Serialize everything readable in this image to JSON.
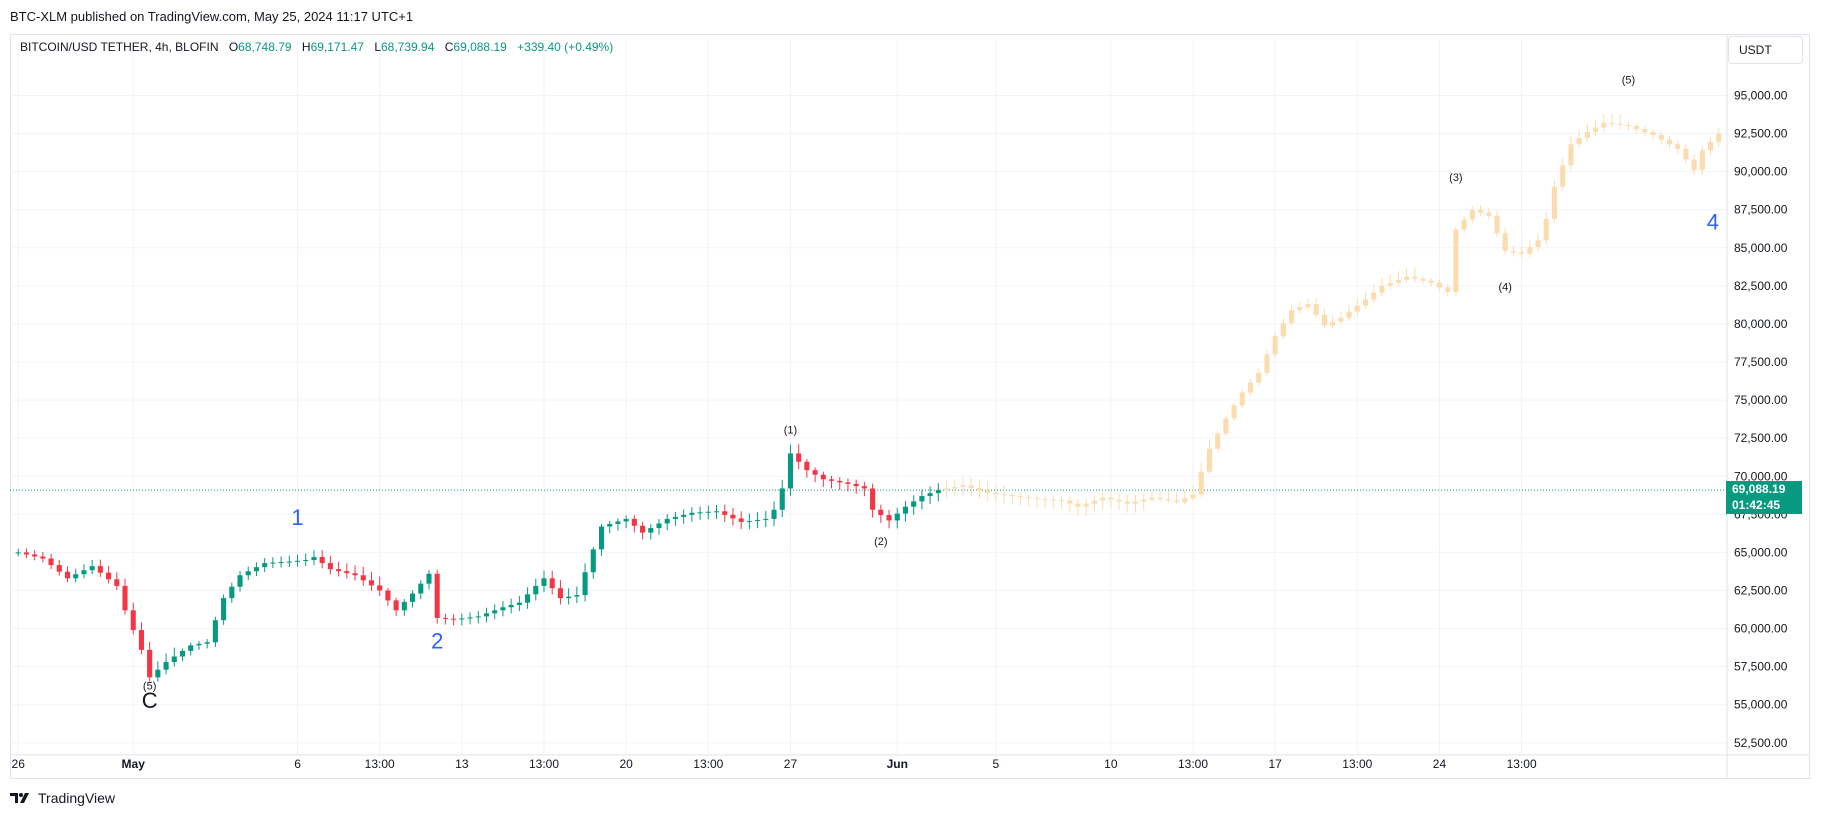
{
  "header": {
    "published_line": "BTC-XLM published on TradingView.com, May 25, 2024 11:17 UTC+1"
  },
  "legend": {
    "symbol": "BITCOIN/USD TETHER, 4h, BLOFIN",
    "open_label": "O",
    "open": "68,748.79",
    "high_label": "H",
    "high": "69,171.47",
    "low_label": "L",
    "low": "68,739.94",
    "close_label": "C",
    "close": "69,088.19",
    "change": "+339.40 (+0.49%)"
  },
  "currency_button": "USDT",
  "last_price": {
    "value": "69,088.19",
    "countdown": "01:42:45"
  },
  "footer": {
    "brand": "TradingView"
  },
  "colors": {
    "up": "#089981",
    "down": "#f23645",
    "projection": "#fbdcae",
    "wave_blue": "#2962ff",
    "grid": "#f0f3fa",
    "axis_text": "#131722"
  },
  "chart_data": {
    "type": "candlestick",
    "symbol": "BITCOIN/USD TETHER",
    "interval": "4h",
    "y_axis": {
      "ticks": [
        52500,
        55000,
        57500,
        60000,
        62500,
        65000,
        67500,
        70000,
        72500,
        75000,
        77500,
        80000,
        82500,
        85000,
        87500,
        90000,
        92500,
        95000
      ],
      "tick_labels": [
        "52,500.00",
        "55,000.00",
        "57,500.00",
        "60,000.00",
        "62,500.00",
        "65,000.00",
        "67,500.00",
        "70,000.00",
        "72,500.00",
        "75,000.00",
        "77,500.00",
        "80,000.00",
        "82,500.00",
        "85,000.00",
        "87,500.00",
        "90,000.00",
        "92,500.00",
        "95,000.00"
      ],
      "ylim": [
        51700,
        97000
      ]
    },
    "x_axis": {
      "tick_labels": [
        "26",
        "May",
        "6",
        "13:00",
        "13",
        "13:00",
        "20",
        "13:00",
        "27",
        "Jun",
        "5",
        "10",
        "13:00",
        "17",
        "13:00",
        "24",
        "13:00"
      ],
      "tick_index": [
        0,
        14,
        34,
        44,
        54,
        64,
        74,
        84,
        94,
        107,
        119,
        133,
        143,
        153,
        163,
        173,
        183
      ],
      "bold_labels": [
        "May",
        "Jun"
      ],
      "xlim": [
        -1,
        208
      ]
    },
    "last_price": 69088.19,
    "actual_series": {
      "name": "",
      "description": "4h candles Apr 26 - May 25",
      "close_path": [
        [
          0,
          65000
        ],
        [
          3,
          64600
        ],
        [
          6,
          63300
        ],
        [
          9,
          64100
        ],
        [
          12,
          62800
        ],
        [
          13,
          61200
        ],
        [
          15,
          58600
        ],
        [
          16,
          56800
        ],
        [
          18,
          57800
        ],
        [
          21,
          58900
        ],
        [
          23,
          59100
        ],
        [
          25,
          62000
        ],
        [
          27,
          63500
        ],
        [
          30,
          64300
        ],
        [
          33,
          64400
        ],
        [
          35,
          64500
        ],
        [
          36,
          64700
        ],
        [
          38,
          63900
        ],
        [
          41,
          63500
        ],
        [
          44,
          62500
        ],
        [
          46,
          61200
        ],
        [
          48,
          62300
        ],
        [
          50,
          63600
        ],
        [
          51,
          60700
        ],
        [
          53,
          60600
        ],
        [
          56,
          60800
        ],
        [
          59,
          61400
        ],
        [
          61,
          61700
        ],
        [
          63,
          62800
        ],
        [
          64,
          63300
        ],
        [
          66,
          62000
        ],
        [
          68,
          62200
        ],
        [
          69,
          63700
        ],
        [
          71,
          66700
        ],
        [
          74,
          67200
        ],
        [
          76,
          66300
        ],
        [
          79,
          67200
        ],
        [
          82,
          67600
        ],
        [
          85,
          67700
        ],
        [
          88,
          67000
        ],
        [
          91,
          67200
        ],
        [
          92,
          67800
        ],
        [
          93,
          69200
        ],
        [
          94,
          71500
        ],
        [
          96,
          70400
        ],
        [
          98,
          69800
        ],
        [
          101,
          69500
        ],
        [
          103,
          69200
        ],
        [
          104,
          67800
        ],
        [
          106,
          67100
        ],
        [
          108,
          68000
        ],
        [
          110,
          68700
        ],
        [
          112,
          69088.19
        ]
      ]
    },
    "projection_series": {
      "name": "",
      "description": "projected path (faded)",
      "close_path": [
        [
          112,
          69088
        ],
        [
          115,
          69400
        ],
        [
          118,
          68900
        ],
        [
          121,
          68700
        ],
        [
          124,
          68500
        ],
        [
          127,
          68400
        ],
        [
          129,
          68000
        ],
        [
          132,
          68600
        ],
        [
          135,
          68200
        ],
        [
          138,
          68600
        ],
        [
          141,
          68300
        ],
        [
          143,
          68800
        ],
        [
          145,
          71800
        ],
        [
          147,
          73800
        ],
        [
          149,
          75500
        ],
        [
          151,
          76800
        ],
        [
          153,
          79200
        ],
        [
          155,
          80900
        ],
        [
          157,
          81300
        ],
        [
          159,
          79900
        ],
        [
          161,
          80400
        ],
        [
          164,
          81600
        ],
        [
          166,
          82500
        ],
        [
          169,
          83100
        ],
        [
          172,
          82700
        ],
        [
          174,
          82100
        ],
        [
          175,
          86200
        ],
        [
          177,
          87500
        ],
        [
          179,
          87100
        ],
        [
          181,
          84800
        ],
        [
          183,
          84600
        ],
        [
          185,
          85500
        ],
        [
          186,
          86900
        ],
        [
          187,
          89000
        ],
        [
          189,
          91800
        ],
        [
          191,
          92600
        ],
        [
          193,
          93200
        ],
        [
          196,
          93000
        ],
        [
          199,
          92400
        ],
        [
          202,
          91500
        ],
        [
          204,
          90100
        ],
        [
          205,
          91400
        ],
        [
          207,
          92500
        ]
      ]
    },
    "wave_labels": [
      {
        "text": "(5)",
        "index": 16,
        "price": 56000,
        "placement": "below",
        "style": "small"
      },
      {
        "text": "C",
        "index": 16,
        "price": 54800,
        "placement": "below",
        "style": "large-black"
      },
      {
        "text": "1",
        "index": 34,
        "price": 66800,
        "placement": "above",
        "style": "large-blue"
      },
      {
        "text": "2",
        "index": 51,
        "price": 58700,
        "placement": "below",
        "style": "large-blue"
      },
      {
        "text": "(1)",
        "index": 94,
        "price": 72800,
        "placement": "above",
        "style": "small"
      },
      {
        "text": "(2)",
        "index": 105,
        "price": 65500,
        "placement": "below",
        "style": "small"
      },
      {
        "text": "(3)",
        "index": 175,
        "price": 89400,
        "placement": "above",
        "style": "small"
      },
      {
        "text": "(4)",
        "index": 181,
        "price": 82200,
        "placement": "below",
        "style": "small"
      },
      {
        "text": "(5)",
        "index": 196,
        "price": 95800,
        "placement": "above",
        "style": "small"
      },
      {
        "text": "4",
        "index": 207,
        "price": 86200,
        "placement": "right",
        "style": "large-blue"
      }
    ]
  }
}
